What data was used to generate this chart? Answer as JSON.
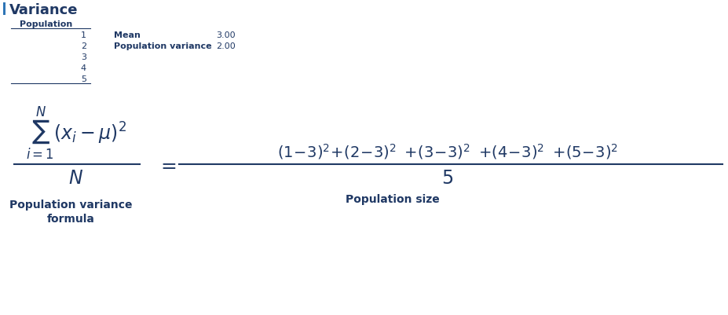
{
  "bg_color": "#ffffff",
  "text_color": "#1f3864",
  "title": "Variance",
  "table_header": "Population",
  "table_values": [
    "1",
    "2",
    "3",
    "4",
    "5"
  ],
  "stat_labels": [
    "Mean",
    "Population variance"
  ],
  "stat_values": [
    "3.00",
    "2.00"
  ],
  "label_left": "Population variance\nformula",
  "label_right": "Population size",
  "accent_color": "#2e75b6"
}
